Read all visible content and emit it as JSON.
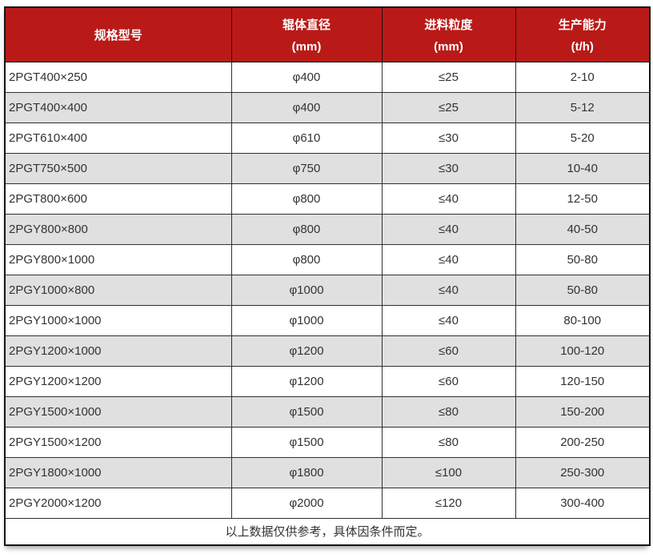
{
  "chart_data": {
    "type": "table",
    "columns": [
      {
        "title": "规格型号",
        "unit": ""
      },
      {
        "title": "辊体直径",
        "unit": "(mm)"
      },
      {
        "title": "进料粒度",
        "unit": "(mm)"
      },
      {
        "title": "生产能力",
        "unit": "(t/h)"
      }
    ],
    "rows": [
      [
        "2PGT400×250",
        "φ400",
        "≤25",
        "2-10"
      ],
      [
        "2PGT400×400",
        "φ400",
        "≤25",
        "5-12"
      ],
      [
        "2PGT610×400",
        "φ610",
        "≤30",
        "5-20"
      ],
      [
        "2PGT750×500",
        "φ750",
        "≤30",
        "10-40"
      ],
      [
        "2PGT800×600",
        "φ800",
        "≤40",
        "12-50"
      ],
      [
        "2PGY800×800",
        "φ800",
        "≤40",
        "40-50"
      ],
      [
        "2PGY800×1000",
        "φ800",
        "≤40",
        "50-80"
      ],
      [
        "2PGY1000×800",
        "φ1000",
        "≤40",
        "50-80"
      ],
      [
        "2PGY1000×1000",
        "φ1000",
        "≤40",
        "80-100"
      ],
      [
        "2PGY1200×1000",
        "φ1200",
        "≤60",
        "100-120"
      ],
      [
        "2PGY1200×1200",
        "φ1200",
        "≤60",
        "120-150"
      ],
      [
        "2PGY1500×1000",
        "φ1500",
        "≤80",
        "150-200"
      ],
      [
        "2PGY1500×1200",
        "φ1500",
        "≤80",
        "200-250"
      ],
      [
        "2PGY1800×1000",
        "φ1800",
        "≤100",
        "250-300"
      ],
      [
        "2PGY2000×1200",
        "φ2000",
        "≤120",
        "300-400"
      ]
    ],
    "footnote": "以上数据仅供参考，具体因条件而定。",
    "layout": {
      "alternating_rows": true,
      "header_lines": 2,
      "grid": "on"
    }
  },
  "colors": {
    "header_bg": "#b91a18",
    "header_text": "#ffffff",
    "alt_row_bg": "#e0e0e0",
    "body_text": "#333333",
    "grid_border": "#303030",
    "outer_border": "#161616"
  }
}
